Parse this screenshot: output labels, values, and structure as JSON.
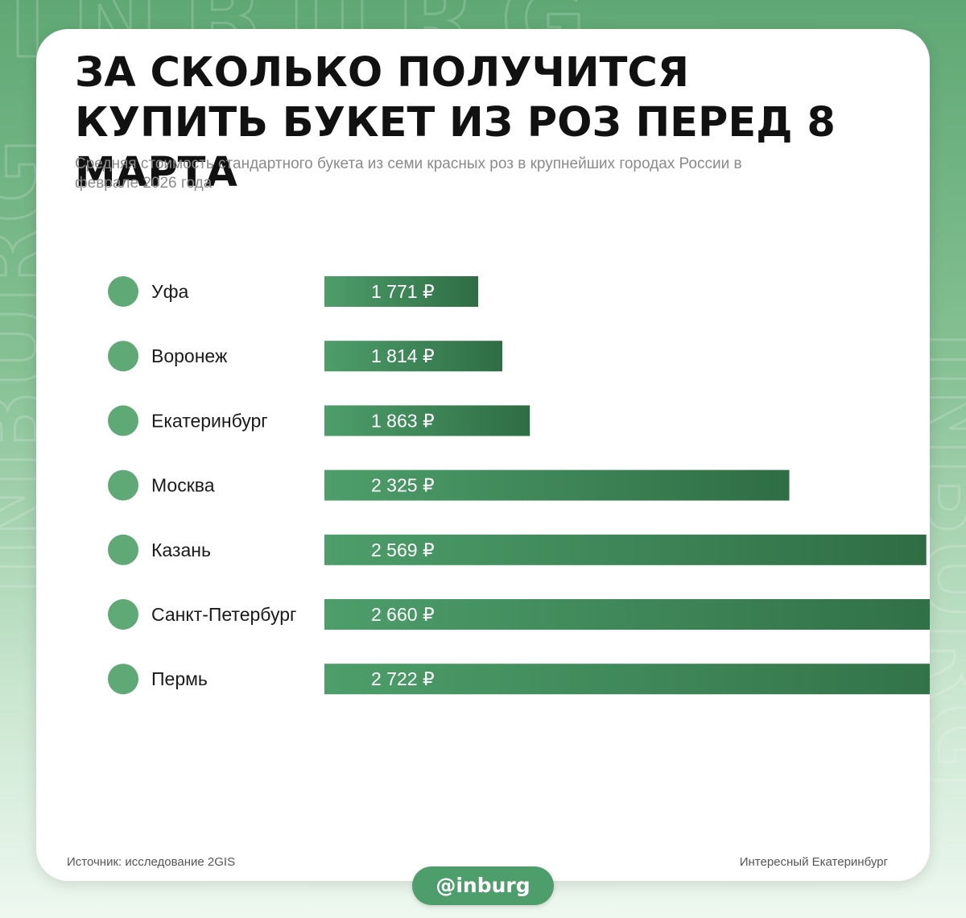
{
  "header": {
    "title": "ЗА СКОЛЬКО ПОЛУЧИТСЯ КУПИТЬ БУКЕТ ИЗ РОЗ ПЕРЕД 8 МАРТА",
    "subtitle": "Средняя стоимость стандартного букета из семи красных роз в крупнейших городах России в феврале 2026 года"
  },
  "chart_data": {
    "type": "bar",
    "orientation": "horizontal",
    "categories": [
      "Уфа",
      "Воронеж",
      "Екатеринбург",
      "Москва",
      "Казань",
      "Санкт-Петербург",
      "Пермь"
    ],
    "values": [
      1771,
      1814,
      1863,
      2325,
      2569,
      2660,
      2722
    ],
    "value_labels": [
      "1 771 ₽",
      "1 814 ₽",
      "1 863 ₽",
      "2 325 ₽",
      "2 569 ₽",
      "2 660 ₽",
      "2 722 ₽"
    ],
    "title": "ЗА СКОЛЬКО ПОЛУЧИТСЯ КУПИТЬ БУКЕТ ИЗ РОЗ ПЕРЕД 8 МАРТА",
    "subtitle": "Средняя стоимость стандартного букета из семи красных роз в крупнейших городах России в феврале 2026 года",
    "grid": false,
    "legend": "none",
    "colors": {
      "bar_start": "#4d9e6a",
      "bar_end": "#2f6d44",
      "dot": "#5ea976",
      "label_text": "#ffffff",
      "category_text": "#1a1a1a"
    }
  },
  "footer": {
    "source": "Источник: исследование 2GIS",
    "brand": "Интересный Екатеринбург",
    "handle": "@inburg"
  },
  "background": {
    "watermark": "INBURG"
  }
}
